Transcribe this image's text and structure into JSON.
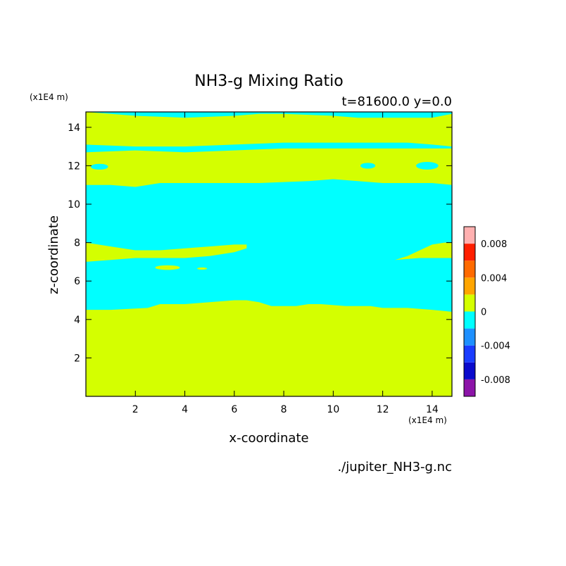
{
  "chart_data": {
    "type": "heatmap",
    "title": "NH3-g Mixing Ratio",
    "subtitle": "t=81600.0 y=0.0",
    "xlabel": "x-coordinate",
    "ylabel": "z-coordinate",
    "x_unit": "(x1E4 m)",
    "z_unit": "(x1E4 m)",
    "xlim": [
      0,
      14.8
    ],
    "ylim": [
      0,
      14.8
    ],
    "x_ticks": [
      "2",
      "4",
      "6",
      "8",
      "10",
      "12",
      "14"
    ],
    "y_ticks": [
      "2",
      "4",
      "6",
      "8",
      "10",
      "12",
      "14"
    ],
    "filename": "./jupiter_NH3-g.nc",
    "colorbar": {
      "levels": [
        -0.01,
        -0.008,
        -0.006,
        -0.004,
        -0.002,
        0,
        0.002,
        0.004,
        0.006,
        0.008,
        0.01
      ],
      "colors": [
        "#8c14a8",
        "#0a0acc",
        "#1a3cff",
        "#1e90ff",
        "#00ffff",
        "#d4ff00",
        "#ffa500",
        "#ff6a00",
        "#ff1e00",
        "#ffb0b0"
      ],
      "tick_labels": [
        "0.008",
        "0.004",
        "0",
        "-0.004",
        "-0.008"
      ],
      "tick_values": [
        0.008,
        0.004,
        0,
        -0.004,
        -0.008
      ]
    },
    "fill_colors": {
      "positive": "#d4ff00",
      "negative": "#00ffff"
    },
    "regions": [
      {
        "sign": "negative",
        "bottom": [
          [
            0,
            4.5
          ],
          [
            1,
            4.5
          ],
          [
            2.5,
            4.6
          ],
          [
            3,
            4.8
          ],
          [
            4,
            4.8
          ],
          [
            5,
            4.9
          ],
          [
            6,
            5.0
          ],
          [
            6.5,
            5.0
          ],
          [
            7,
            4.9
          ],
          [
            7.5,
            4.7
          ],
          [
            8.5,
            4.7
          ],
          [
            9,
            4.8
          ],
          [
            9.5,
            4.8
          ],
          [
            10.5,
            4.7
          ],
          [
            11.5,
            4.7
          ],
          [
            12,
            4.6
          ],
          [
            13,
            4.6
          ],
          [
            14,
            4.5
          ],
          [
            14.8,
            4.4
          ]
        ],
        "top": [
          [
            0,
            11.0
          ],
          [
            1,
            11.0
          ],
          [
            2,
            10.9
          ],
          [
            3,
            11.1
          ],
          [
            5,
            11.1
          ],
          [
            7,
            11.1
          ],
          [
            9,
            11.2
          ],
          [
            10,
            11.3
          ],
          [
            11,
            11.2
          ],
          [
            12,
            11.1
          ],
          [
            13,
            11.1
          ],
          [
            14,
            11.1
          ],
          [
            14.8,
            11.0
          ]
        ]
      },
      {
        "sign": "positive",
        "bottom": [
          [
            0,
            7.0
          ],
          [
            1,
            7.1
          ],
          [
            2,
            7.2
          ],
          [
            4,
            7.2
          ],
          [
            5,
            7.3
          ],
          [
            6,
            7.5
          ],
          [
            6.5,
            7.7
          ],
          [
            6.5,
            7.9
          ]
        ],
        "top": [
          [
            0,
            8.0
          ],
          [
            1,
            7.8
          ],
          [
            2,
            7.6
          ],
          [
            3,
            7.6
          ],
          [
            4,
            7.7
          ],
          [
            5,
            7.8
          ],
          [
            6,
            7.9
          ],
          [
            6.5,
            7.9
          ]
        ]
      },
      {
        "sign": "positive",
        "bottom": [
          [
            12.5,
            7.1
          ],
          [
            13.5,
            7.2
          ],
          [
            14.8,
            7.2
          ]
        ],
        "top": [
          [
            12.5,
            7.1
          ],
          [
            13,
            7.3
          ],
          [
            13.5,
            7.6
          ],
          [
            14,
            7.9
          ],
          [
            14.5,
            8.0
          ],
          [
            14.8,
            8.0
          ]
        ]
      },
      {
        "sign": "negative",
        "bottom": [
          [
            0,
            12.7
          ],
          [
            2,
            12.8
          ],
          [
            4,
            12.7
          ],
          [
            6,
            12.8
          ],
          [
            8,
            12.9
          ],
          [
            10,
            12.9
          ],
          [
            12,
            12.9
          ],
          [
            14,
            12.9
          ],
          [
            14.8,
            12.9
          ]
        ],
        "top": [
          [
            0,
            13.1
          ],
          [
            2,
            13.0
          ],
          [
            4,
            13.0
          ],
          [
            6,
            13.1
          ],
          [
            8,
            13.2
          ],
          [
            10,
            13.2
          ],
          [
            12,
            13.2
          ],
          [
            13,
            13.2
          ],
          [
            14,
            13.1
          ],
          [
            14.8,
            13.0
          ]
        ]
      },
      {
        "sign": "negative",
        "bottom": [
          [
            0,
            14.8
          ],
          [
            2,
            14.6
          ],
          [
            4,
            14.5
          ],
          [
            6,
            14.6
          ],
          [
            7,
            14.7
          ],
          [
            8,
            14.7
          ],
          [
            10,
            14.6
          ],
          [
            11,
            14.5
          ],
          [
            12,
            14.5
          ],
          [
            13,
            14.5
          ],
          [
            14,
            14.5
          ],
          [
            14.8,
            14.7
          ]
        ],
        "top": [
          [
            0,
            14.8
          ],
          [
            14.8,
            14.8
          ]
        ]
      }
    ],
    "blobs": [
      {
        "sign": "negative",
        "cx": 0.55,
        "cz": 11.95,
        "rx": 0.35,
        "rz": 0.15
      },
      {
        "sign": "negative",
        "cx": 11.4,
        "cz": 12.0,
        "rx": 0.3,
        "rz": 0.15
      },
      {
        "sign": "negative",
        "cx": 13.8,
        "cz": 12.0,
        "rx": 0.45,
        "rz": 0.2
      },
      {
        "sign": "positive",
        "cx": 3.3,
        "cz": 6.7,
        "rx": 0.5,
        "rz": 0.12
      },
      {
        "sign": "positive",
        "cx": 4.7,
        "cz": 6.65,
        "rx": 0.2,
        "rz": 0.06
      }
    ]
  }
}
